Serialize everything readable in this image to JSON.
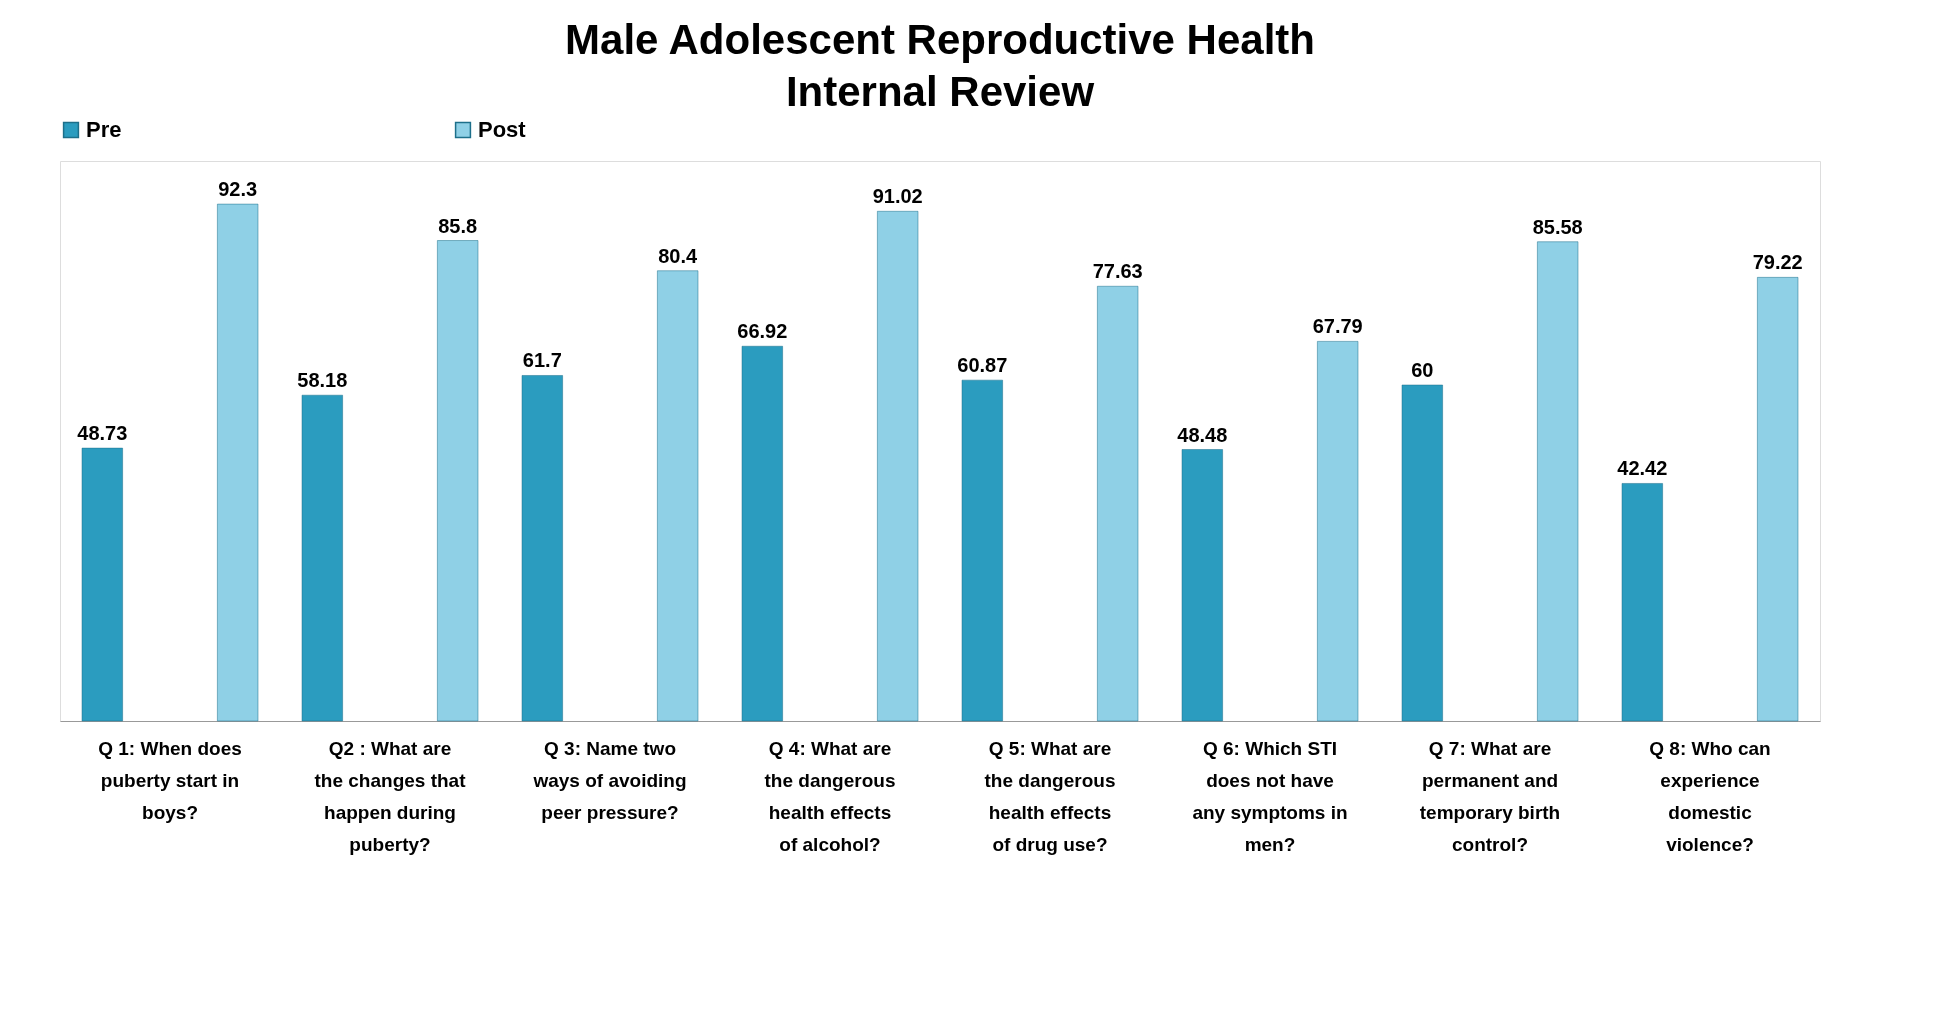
{
  "chart_data": {
    "type": "bar",
    "title": "Male Adolescent Reproductive Health Internal Review",
    "categories": [
      "Q 1: When does puberty start in boys?",
      "Q2 : What are the changes that happen during puberty?",
      "Q 3: Name two ways of avoiding peer pressure?",
      "Q 4: What are the dangerous health effects of alcohol?",
      "Q 5: What are the dangerous health effects of drug use?",
      "Q 6:  Which STI does not have any symptoms in men?",
      "Q 7: What are permanent and temporary birth control?",
      "Q 8: Who can experience domestic violence?"
    ],
    "series": [
      {
        "name": "Pre",
        "color": "#2b9cbf",
        "values": [
          48.73,
          58.18,
          61.7,
          66.92,
          60.87,
          48.48,
          60,
          42.42
        ]
      },
      {
        "name": "Post",
        "color": "#8fd0e6",
        "values": [
          92.3,
          85.8,
          80.4,
          91.02,
          77.63,
          67.79,
          85.58,
          79.22
        ]
      }
    ],
    "ylim": [
      0,
      100
    ],
    "tick_labels": "x",
    "data_labels": true,
    "legend": "top",
    "grid": false
  }
}
